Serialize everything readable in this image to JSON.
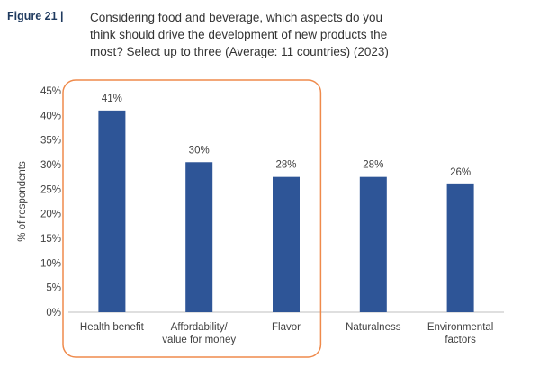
{
  "figure": {
    "label": "Figure 21 |",
    "title_lines": [
      "Considering food and beverage, which aspects do you",
      "think should drive the development of new products the",
      "most? Select up to three (Average: 11 countries) (2023)"
    ]
  },
  "chart_data": {
    "type": "bar",
    "ylabel": "% of respondents",
    "ylim": [
      0,
      45
    ],
    "yticks": [
      "0%",
      "5%",
      "10%",
      "15%",
      "20%",
      "25%",
      "30%",
      "35%",
      "40%",
      "45%"
    ],
    "categories": [
      [
        "Health benefit"
      ],
      [
        "Affordability/",
        "value for money"
      ],
      [
        "Flavor"
      ],
      [
        "Naturalness"
      ],
      [
        "Environmental",
        "factors"
      ]
    ],
    "values": [
      41,
      30.5,
      27.5,
      27.5,
      26
    ],
    "data_labels": [
      "41%",
      "30%",
      "28%",
      "28%",
      "26%"
    ],
    "bar_color": "#2e5597",
    "highlight_box_color": "#ef8a4b",
    "highlighted_categories": [
      0,
      1,
      2
    ],
    "grid": false,
    "legend": "none"
  }
}
